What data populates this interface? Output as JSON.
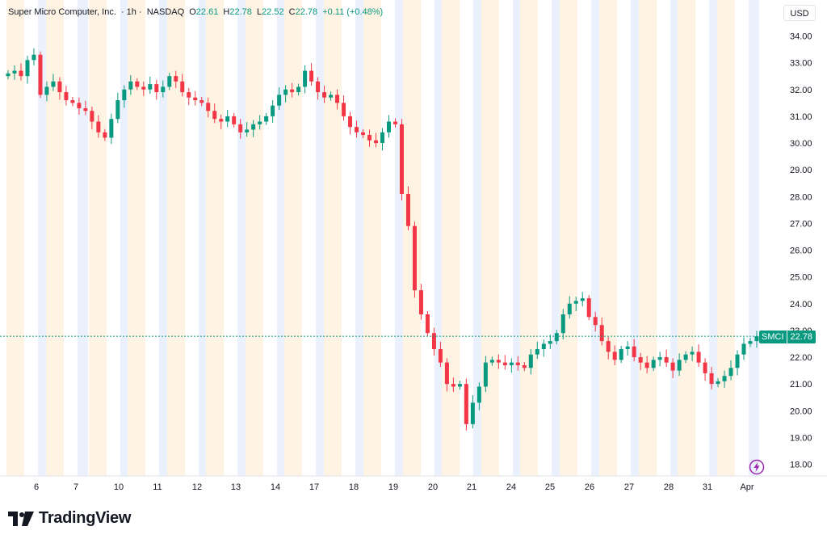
{
  "header": {
    "symbol_name": "Super Micro Computer, Inc.",
    "interval": "· 1h ·",
    "exchange": "NASDAQ",
    "o_label": "O",
    "o_value": "22.61",
    "h_label": "H",
    "h_value": "22.78",
    "l_label": "L",
    "l_value": "22.52",
    "c_label": "C",
    "c_value": "22.78",
    "change": "+0.11 (+0.48%)"
  },
  "currency_button": "USD",
  "last_price_tag": {
    "symbol": "SMCI",
    "value": "22.78"
  },
  "brand": {
    "name": "TradingView"
  },
  "colors": {
    "up": "#089981",
    "down": "#f23645",
    "premarket_band": "#fff3e3",
    "afterhours_band": "#eaf1fd",
    "last_price_line": "#089981",
    "alert_icon": "#9c27b0"
  },
  "chart_data": {
    "type": "candlestick",
    "symbol": "SMCI",
    "title": "Super Micro Computer, Inc. · 1h · NASDAQ",
    "timeframe": "1h",
    "ylim": [
      17.6,
      34.6
    ],
    "y_ticks": [
      "34.00",
      "33.00",
      "32.00",
      "31.00",
      "30.00",
      "29.00",
      "28.00",
      "27.00",
      "26.00",
      "25.00",
      "24.00",
      "23.00",
      "22.00",
      "21.00",
      "20.00",
      "19.00",
      "18.00"
    ],
    "x_ticks": [
      "6",
      "7",
      "10",
      "11",
      "12",
      "13",
      "14",
      "17",
      "18",
      "19",
      "20",
      "21",
      "24",
      "25",
      "26",
      "27",
      "28",
      "31",
      "Apr"
    ],
    "last_price": 22.78,
    "last_candle": {
      "open": 22.61,
      "high": 22.78,
      "low": 22.52,
      "close": 22.78,
      "change": 0.11,
      "change_pct": 0.48
    },
    "extended_hours_shading": true,
    "grid": false,
    "closes_approx": [
      32.6,
      32.7,
      32.5,
      33.1,
      33.3,
      31.8,
      32.1,
      32.3,
      31.9,
      31.6,
      31.5,
      31.3,
      31.2,
      30.8,
      30.4,
      30.2,
      30.9,
      31.6,
      32.0,
      32.3,
      32.1,
      32.0,
      32.2,
      31.9,
      32.1,
      32.5,
      32.3,
      31.9,
      31.7,
      31.6,
      31.5,
      31.2,
      30.9,
      30.8,
      31.0,
      30.7,
      30.4,
      30.5,
      30.7,
      30.8,
      31.0,
      31.4,
      31.8,
      32.0,
      31.9,
      32.1,
      32.7,
      32.3,
      31.9,
      31.7,
      31.8,
      31.5,
      31.0,
      30.6,
      30.4,
      30.3,
      30.1,
      30.0,
      30.4,
      30.8,
      30.7,
      28.1,
      26.9,
      24.5,
      23.6,
      22.9,
      22.3,
      21.8,
      21.0,
      20.9,
      21.0,
      19.5,
      20.3,
      20.9,
      21.8,
      21.9,
      21.8,
      21.7,
      21.8,
      21.7,
      21.6,
      22.1,
      22.3,
      22.5,
      22.6,
      22.9,
      23.6,
      24.0,
      24.1,
      24.2,
      23.5,
      23.2,
      22.6,
      22.2,
      21.9,
      22.3,
      22.4,
      22.0,
      21.8,
      21.6,
      21.9,
      22.0,
      21.8,
      21.5,
      21.9,
      22.1,
      22.2,
      21.8,
      21.4,
      21.0,
      21.1,
      21.3,
      21.6,
      22.1,
      22.5,
      22.6,
      22.78
    ]
  }
}
